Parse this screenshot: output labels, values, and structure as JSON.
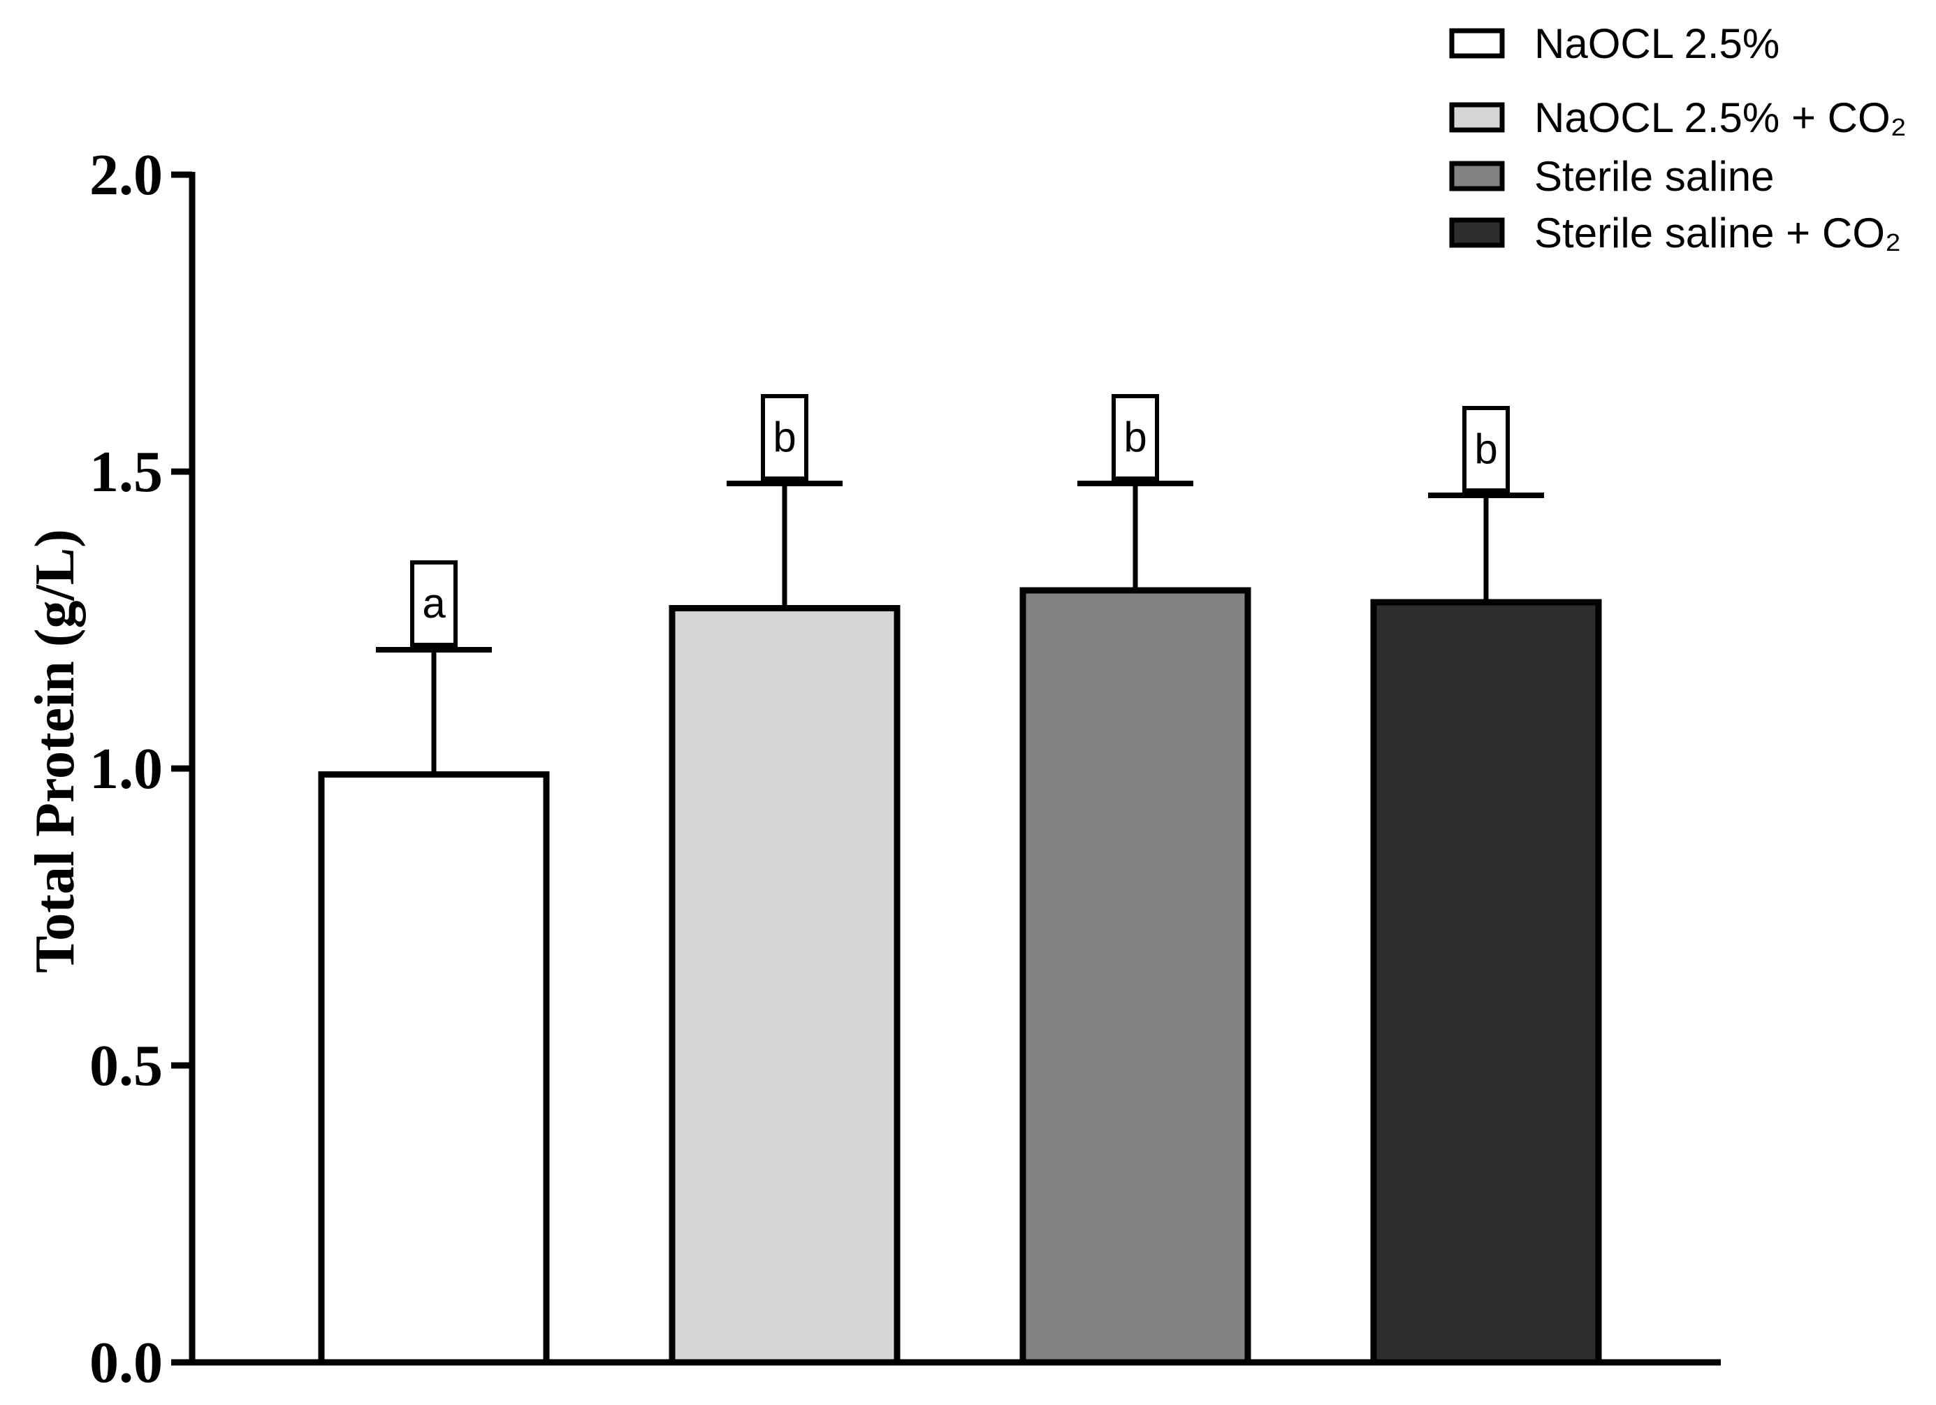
{
  "chart_data": {
    "type": "bar",
    "title": "",
    "xlabel": "",
    "ylabel": "Total Protein (g/L)",
    "ylim": [
      0,
      2.0
    ],
    "yticks": [
      "0.0",
      "0.5",
      "1.0",
      "1.5",
      "2.0"
    ],
    "grid": false,
    "legend_position": "top-right",
    "categories": [
      "NaOCL 2.5%",
      "NaOCL 2.5% + CO₂",
      "Sterile saline",
      "Sterile saline + CO₂"
    ],
    "values": [
      0.99,
      1.27,
      1.3,
      1.28
    ],
    "error": [
      0.21,
      0.21,
      0.18,
      0.18
    ],
    "significance": [
      "a",
      "b",
      "b",
      "b"
    ],
    "colors": [
      "#ffffff",
      "#d6d6d6",
      "#828282",
      "#2e2e2e"
    ]
  }
}
